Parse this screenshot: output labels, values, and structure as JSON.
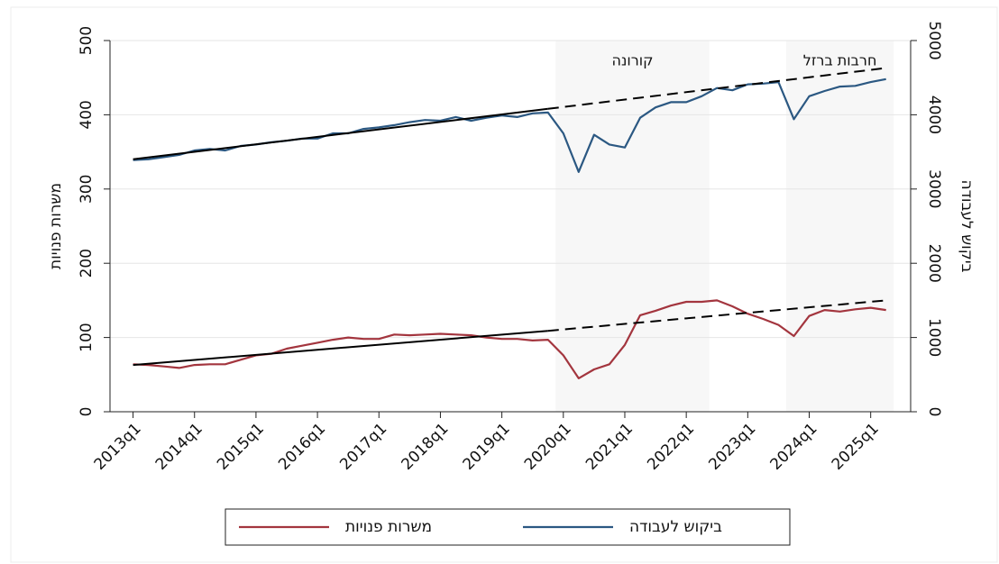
{
  "chart_data": {
    "type": "line",
    "x": [
      212,
      213,
      214,
      215,
      216,
      217,
      218,
      219,
      220,
      221,
      222,
      223,
      224,
      225,
      226,
      227,
      228,
      229,
      230,
      231,
      232,
      233,
      234,
      235,
      236,
      237,
      238,
      239,
      240,
      241,
      242,
      243,
      244,
      245,
      246,
      247,
      248,
      249,
      250,
      251,
      252,
      253,
      254,
      255,
      256,
      257,
      258,
      259,
      260,
      261
    ],
    "xlim": [
      210.5,
      262.6
    ],
    "xticks": [
      {
        "value": 212,
        "label": "2013q1"
      },
      {
        "value": 216,
        "label": "2014q1"
      },
      {
        "value": 220,
        "label": "2015q1"
      },
      {
        "value": 224,
        "label": "2016q1"
      },
      {
        "value": 228,
        "label": "2017q1"
      },
      {
        "value": 232,
        "label": "2018q1"
      },
      {
        "value": 236,
        "label": "2019q1"
      },
      {
        "value": 240,
        "label": "2020q1"
      },
      {
        "value": 244,
        "label": "2021q1"
      },
      {
        "value": 248,
        "label": "2022q1"
      },
      {
        "value": 252,
        "label": "2023q1"
      },
      {
        "value": 256,
        "label": "2024q1"
      },
      {
        "value": 260,
        "label": "2025q1"
      }
    ],
    "ylabel": "משרות פנויות",
    "y2label": "ביקוש לעבודה",
    "ylim": [
      0,
      500
    ],
    "yticks": [
      0,
      100,
      200,
      300,
      400,
      500
    ],
    "y2lim": [
      0,
      5000
    ],
    "y2ticks": [
      0,
      1000,
      2000,
      3000,
      4000,
      5000
    ],
    "grid": true,
    "series": [
      {
        "name": "משרות פנויות",
        "color": "#a3353e",
        "values": [
          64,
          63,
          61,
          59,
          63,
          64,
          64,
          70,
          76,
          78,
          85,
          89,
          93,
          97,
          100,
          98,
          98,
          104,
          103,
          104,
          105,
          104,
          103,
          100,
          98,
          98,
          96,
          97,
          76,
          45,
          57,
          64,
          90,
          130,
          136,
          143,
          148,
          148,
          150,
          142,
          132,
          125,
          117,
          102,
          129,
          137,
          135,
          138,
          140,
          137
        ]
      },
      {
        "name": "ביקוש לעבודה",
        "color": "#2b5882",
        "axis": "y2",
        "values": [
          3390,
          3400,
          3430,
          3460,
          3520,
          3540,
          3520,
          3580,
          3600,
          3630,
          3650,
          3680,
          3680,
          3750,
          3750,
          3810,
          3830,
          3860,
          3900,
          3930,
          3920,
          3970,
          3920,
          3960,
          3990,
          3970,
          4020,
          4030,
          3750,
          3230,
          3730,
          3600,
          3560,
          3960,
          4100,
          4170,
          4170,
          4250,
          4360,
          4330,
          4410,
          4420,
          4440,
          3940,
          4250,
          4320,
          4380,
          4390,
          4440,
          4480
        ]
      }
    ],
    "trend_lines": [
      {
        "axis": "y2",
        "style": "solid",
        "color": "#000000",
        "x": [
          212,
          239
        ],
        "values": [
          3400,
          4080
        ]
      },
      {
        "axis": "y2",
        "style": "dashed",
        "color": "#000000",
        "x": [
          239,
          261
        ],
        "values": [
          4080,
          4630
        ]
      },
      {
        "style": "solid",
        "color": "#000000",
        "x": [
          212,
          239
        ],
        "values": [
          63,
          109
        ]
      },
      {
        "style": "dashed",
        "color": "#000000",
        "x": [
          239,
          261
        ],
        "values": [
          109,
          150
        ]
      }
    ],
    "shaded_regions": [
      {
        "label": "קורונה",
        "start": 239.5,
        "end": 249.5,
        "color": "#f7f7f7"
      },
      {
        "label": "חרבות ברזל",
        "start": 254.5,
        "end": 261.5,
        "color": "#f7f7f7"
      }
    ]
  }
}
